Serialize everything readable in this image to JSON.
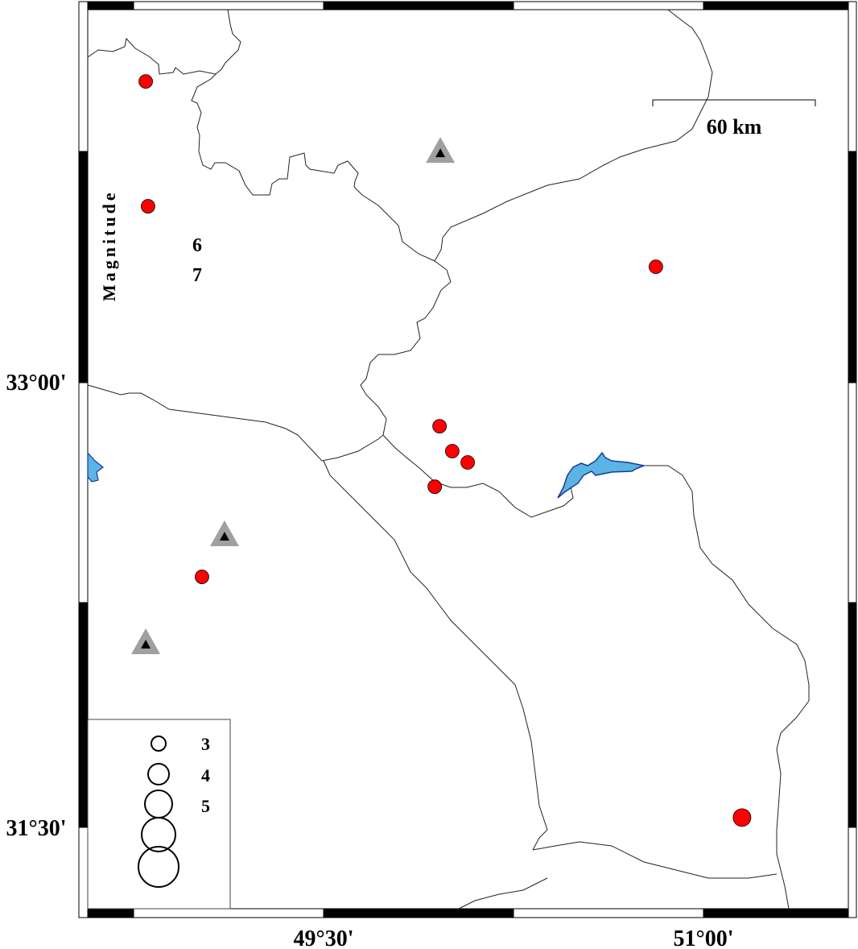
{
  "map": {
    "x_ticks": [
      {
        "label": "49°30'",
        "lon": 49.5
      },
      {
        "label": "51°00'",
        "lon": 51.0
      }
    ],
    "y_ticks": [
      {
        "label": "33°00'",
        "lat": 33.0
      },
      {
        "label": "31°30'",
        "lat": 31.5
      }
    ],
    "scale_bar_label": "60 km",
    "event_color": "#ff0000",
    "lake_color": "#5ab4e4",
    "station_color": "#a0a0a0",
    "events": [
      {
        "lon": 48.798,
        "lat": 34.016
      },
      {
        "lon": 48.807,
        "lat": 33.595
      },
      {
        "lon": 50.812,
        "lat": 33.391
      },
      {
        "lon": 49.958,
        "lat": 32.853
      },
      {
        "lon": 50.008,
        "lat": 32.769
      },
      {
        "lon": 50.069,
        "lat": 32.731
      },
      {
        "lon": 49.939,
        "lat": 32.649
      },
      {
        "lon": 49.02,
        "lat": 32.345
      },
      {
        "lon": 51.152,
        "lat": 31.533
      }
    ],
    "stations": [
      {
        "lon": 49.961,
        "lat": 33.774
      },
      {
        "lon": 49.109,
        "lat": 32.481
      },
      {
        "lon": 48.798,
        "lat": 32.117
      }
    ]
  },
  "legend": {
    "title": "Magnitude",
    "labels": [
      "3",
      "4",
      "5",
      "6",
      "7"
    ]
  }
}
